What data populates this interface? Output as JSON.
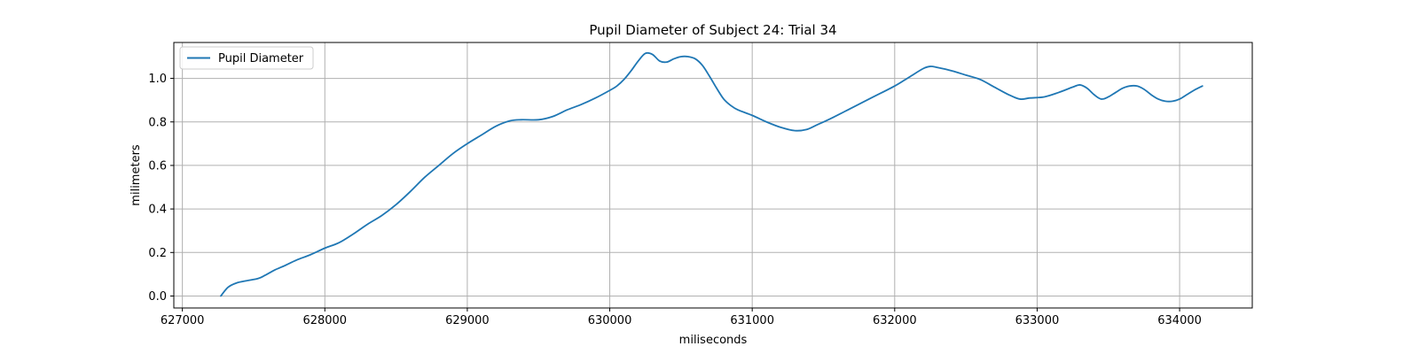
{
  "chart_data": {
    "type": "line",
    "title": "Pupil Diameter of Subject 24: Trial 34",
    "xlabel": "miliseconds",
    "ylabel": "milimeters",
    "xlim": [
      626940,
      634510
    ],
    "ylim": [
      -0.055,
      1.165
    ],
    "xticks": [
      627000,
      628000,
      629000,
      630000,
      631000,
      632000,
      633000,
      634000
    ],
    "yticks": [
      0.0,
      0.2,
      0.4,
      0.6,
      0.8,
      1.0
    ],
    "ytick_labels": [
      "0.0",
      "0.2",
      "0.4",
      "0.6",
      "0.8",
      "1.0"
    ],
    "grid": true,
    "legend": {
      "position": "top-left",
      "entries": [
        "Pupil Diameter"
      ]
    },
    "colors": {
      "series": "#1f77b4",
      "grid": "#b0b0b0"
    },
    "series": [
      {
        "name": "Pupil Diameter",
        "x": [
          627270,
          627320,
          627380,
          627450,
          627530,
          627580,
          627650,
          627720,
          627800,
          627900,
          628000,
          628100,
          628200,
          628300,
          628400,
          628500,
          628600,
          628700,
          628800,
          628900,
          629000,
          629100,
          629200,
          629300,
          629380,
          629500,
          629600,
          629700,
          629800,
          629900,
          630000,
          630050,
          630100,
          630150,
          630200,
          630250,
          630300,
          630350,
          630400,
          630450,
          630500,
          630550,
          630600,
          630650,
          630700,
          630750,
          630800,
          630850,
          630900,
          631000,
          631100,
          631200,
          631300,
          631380,
          631450,
          631550,
          631700,
          631850,
          632000,
          632100,
          632200,
          632250,
          632300,
          632400,
          632500,
          632600,
          632700,
          632800,
          632880,
          632950,
          633050,
          633150,
          633250,
          633300,
          633350,
          633400,
          633450,
          633500,
          633550,
          633600,
          633650,
          633700,
          633750,
          633800,
          633850,
          633900,
          633950,
          634000,
          634050,
          634100,
          634160
        ],
        "values": [
          0.0,
          0.04,
          0.06,
          0.07,
          0.08,
          0.095,
          0.12,
          0.14,
          0.165,
          0.19,
          0.22,
          0.245,
          0.285,
          0.33,
          0.37,
          0.42,
          0.48,
          0.545,
          0.6,
          0.655,
          0.7,
          0.74,
          0.78,
          0.805,
          0.81,
          0.81,
          0.825,
          0.855,
          0.88,
          0.91,
          0.945,
          0.965,
          0.995,
          1.035,
          1.08,
          1.115,
          1.11,
          1.08,
          1.075,
          1.09,
          1.1,
          1.1,
          1.09,
          1.06,
          1.01,
          0.955,
          0.905,
          0.875,
          0.855,
          0.83,
          0.8,
          0.775,
          0.76,
          0.765,
          0.785,
          0.815,
          0.865,
          0.915,
          0.965,
          1.005,
          1.045,
          1.055,
          1.05,
          1.035,
          1.015,
          0.995,
          0.96,
          0.925,
          0.905,
          0.91,
          0.915,
          0.935,
          0.96,
          0.97,
          0.955,
          0.925,
          0.905,
          0.915,
          0.935,
          0.955,
          0.965,
          0.965,
          0.95,
          0.925,
          0.905,
          0.895,
          0.895,
          0.905,
          0.925,
          0.945,
          0.965
        ]
      }
    ]
  }
}
